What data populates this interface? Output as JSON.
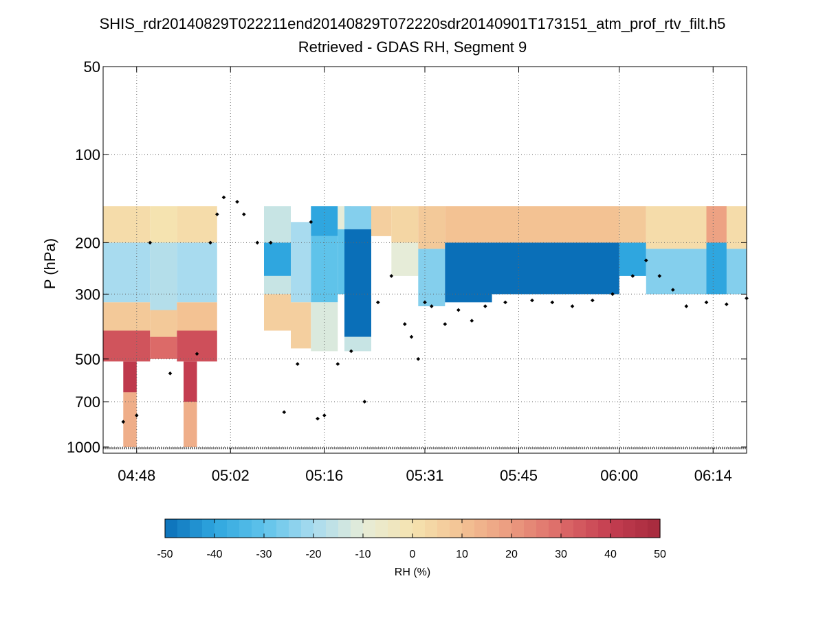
{
  "chart_data": {
    "type": "heatmap",
    "title": "SHIS_rdr20140829T022211end20140829T072220sdr20140901T173151_atm_prof_rtv_filt.h5",
    "subtitle": "Retrieved - GDAS RH, Segment 9",
    "ylabel": "P (hPa)",
    "y_scale": "log",
    "y_inverted": true,
    "ylim": [
      50,
      1050
    ],
    "y_ticks": [
      50,
      100,
      200,
      300,
      500,
      700,
      1000
    ],
    "xlim": [
      "04:43",
      "06:19"
    ],
    "x_ticks": [
      "04:48",
      "05:02",
      "05:16",
      "05:31",
      "05:45",
      "06:00",
      "06:14"
    ],
    "grid": true,
    "colorbar": {
      "label": "RH (%)",
      "range": [
        -50,
        50
      ],
      "ticks": [
        -50,
        -40,
        -30,
        -20,
        -10,
        0,
        10,
        20,
        30,
        40,
        50
      ],
      "colors": [
        "#0a6fb8",
        "#2fa6df",
        "#5fc3ea",
        "#a8dbef",
        "#e6ecd8",
        "#f5e3b0",
        "#f3c293",
        "#eb9a7f",
        "#dc6a68",
        "#c43d50",
        "#a52a3c"
      ]
    },
    "regions": [
      {
        "t_start": "04:43",
        "t_end": "04:50",
        "bands": [
          {
            "p_top": 150,
            "p_bot": 200,
            "value": 2
          },
          {
            "p_top": 200,
            "p_bot": 320,
            "value": -20
          },
          {
            "p_top": 320,
            "p_bot": 400,
            "value": 8
          },
          {
            "p_top": 400,
            "p_bot": 510,
            "value": 35
          }
        ]
      },
      {
        "t_start": "04:46",
        "t_end": "04:48",
        "bands": [
          {
            "p_top": 510,
            "p_bot": 650,
            "value": 42
          },
          {
            "p_top": 650,
            "p_bot": 1000,
            "value": 15
          }
        ]
      },
      {
        "t_start": "04:50",
        "t_end": "04:54",
        "bands": [
          {
            "p_top": 150,
            "p_bot": 200,
            "value": 0
          },
          {
            "p_top": 200,
            "p_bot": 340,
            "value": -18
          },
          {
            "p_top": 340,
            "p_bot": 420,
            "value": 8
          },
          {
            "p_top": 420,
            "p_bot": 500,
            "value": 30
          }
        ]
      },
      {
        "t_start": "04:54",
        "t_end": "05:00",
        "bands": [
          {
            "p_top": 150,
            "p_bot": 200,
            "value": 2
          },
          {
            "p_top": 200,
            "p_bot": 320,
            "value": -20
          },
          {
            "p_top": 320,
            "p_bot": 400,
            "value": 10
          },
          {
            "p_top": 400,
            "p_bot": 510,
            "value": 36
          }
        ]
      },
      {
        "t_start": "04:55",
        "t_end": "04:57",
        "bands": [
          {
            "p_top": 510,
            "p_bot": 700,
            "value": 40
          },
          {
            "p_top": 700,
            "p_bot": 1000,
            "value": 15
          }
        ]
      },
      {
        "t_start": "05:07",
        "t_end": "05:11",
        "bands": [
          {
            "p_top": 150,
            "p_bot": 200,
            "value": -15
          },
          {
            "p_top": 200,
            "p_bot": 260,
            "value": -40
          },
          {
            "p_top": 260,
            "p_bot": 300,
            "value": -15
          },
          {
            "p_top": 300,
            "p_bot": 400,
            "value": 6
          }
        ]
      },
      {
        "t_start": "05:11",
        "t_end": "05:14",
        "bands": [
          {
            "p_top": 170,
            "p_bot": 320,
            "value": -20
          },
          {
            "p_top": 320,
            "p_bot": 460,
            "value": 6
          }
        ]
      },
      {
        "t_start": "05:14",
        "t_end": "05:18",
        "bands": [
          {
            "p_top": 150,
            "p_bot": 190,
            "value": -40
          },
          {
            "p_top": 190,
            "p_bot": 320,
            "value": -30
          },
          {
            "p_top": 320,
            "p_bot": 470,
            "value": -12
          }
        ]
      },
      {
        "t_start": "05:18",
        "t_end": "05:20",
        "bands": [
          {
            "p_top": 150,
            "p_bot": 180,
            "value": -10
          },
          {
            "p_top": 180,
            "p_bot": 300,
            "value": -30
          }
        ]
      },
      {
        "t_start": "05:19",
        "t_end": "05:23",
        "bands": [
          {
            "p_top": 150,
            "p_bot": 180,
            "value": -25
          },
          {
            "p_top": 180,
            "p_bot": 420,
            "value": -50
          },
          {
            "p_top": 420,
            "p_bot": 470,
            "value": -15
          }
        ]
      },
      {
        "t_start": "05:23",
        "t_end": "05:26",
        "bands": [
          {
            "p_top": 150,
            "p_bot": 190,
            "value": 6
          }
        ]
      },
      {
        "t_start": "05:26",
        "t_end": "05:30",
        "bands": [
          {
            "p_top": 150,
            "p_bot": 200,
            "value": 4
          },
          {
            "p_top": 200,
            "p_bot": 260,
            "value": -10
          }
        ]
      },
      {
        "t_start": "05:30",
        "t_end": "05:34",
        "bands": [
          {
            "p_top": 150,
            "p_bot": 210,
            "value": 8
          },
          {
            "p_top": 210,
            "p_bot": 330,
            "value": -25
          }
        ]
      },
      {
        "t_start": "05:34",
        "t_end": "05:41",
        "bands": [
          {
            "p_top": 150,
            "p_bot": 200,
            "value": 10
          },
          {
            "p_top": 200,
            "p_bot": 320,
            "value": -50
          }
        ]
      },
      {
        "t_start": "05:41",
        "t_end": "06:00",
        "bands": [
          {
            "p_top": 150,
            "p_bot": 200,
            "value": 10
          },
          {
            "p_top": 200,
            "p_bot": 300,
            "value": -50
          }
        ]
      },
      {
        "t_start": "06:00",
        "t_end": "06:04",
        "bands": [
          {
            "p_top": 150,
            "p_bot": 200,
            "value": 8
          },
          {
            "p_top": 200,
            "p_bot": 260,
            "value": -40
          }
        ]
      },
      {
        "t_start": "06:04",
        "t_end": "06:19",
        "bands": [
          {
            "p_top": 150,
            "p_bot": 210,
            "value": 2
          },
          {
            "p_top": 210,
            "p_bot": 300,
            "value": -25
          }
        ]
      },
      {
        "t_start": "06:13",
        "t_end": "06:16",
        "bands": [
          {
            "p_top": 150,
            "p_bot": 200,
            "value": 18
          },
          {
            "p_top": 200,
            "p_bot": 300,
            "value": -40
          }
        ]
      }
    ],
    "dotted_profile": {
      "time": [
        "04:46",
        "04:48",
        "04:50",
        "04:53",
        "04:57",
        "04:59",
        "05:00",
        "05:01",
        "05:03",
        "05:04",
        "05:06",
        "05:08",
        "05:10",
        "05:12",
        "05:14",
        "05:15",
        "05:16",
        "05:18",
        "05:20",
        "05:22",
        "05:24",
        "05:26",
        "05:28",
        "05:29",
        "05:30",
        "05:31",
        "05:32",
        "05:34",
        "05:36",
        "05:38",
        "05:40",
        "05:43",
        "05:47",
        "05:50",
        "05:53",
        "05:56",
        "05:59",
        "06:02",
        "06:04",
        "06:06",
        "06:08",
        "06:10",
        "06:13",
        "06:16",
        "06:19"
      ],
      "pressure": [
        820,
        780,
        200,
        560,
        480,
        200,
        160,
        140,
        145,
        160,
        200,
        200,
        760,
        520,
        170,
        800,
        780,
        520,
        470,
        700,
        320,
        260,
        380,
        420,
        500,
        320,
        330,
        380,
        340,
        370,
        330,
        320,
        315,
        320,
        330,
        315,
        300,
        260,
        230,
        260,
        290,
        330,
        320,
        325,
        310
      ]
    },
    "surface_line": {
      "pressure": 1010
    }
  }
}
